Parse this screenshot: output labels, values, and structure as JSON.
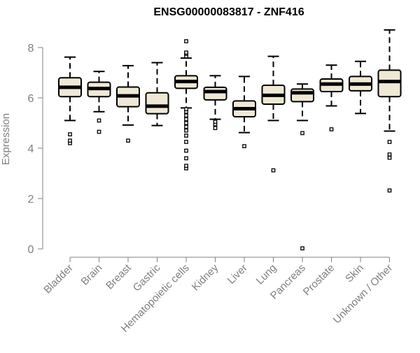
{
  "chart_data": {
    "type": "box",
    "title": "ENSG00000083817 - ZNF416",
    "xlabel": "",
    "ylabel": "Expression",
    "ylim": [
      0,
      8.6
    ],
    "yticks": [
      0,
      2,
      4,
      6,
      8
    ],
    "grid": false,
    "legend": "none",
    "colors": {
      "box_fill": "#EEE8D5",
      "box_stroke": "#000000",
      "median": "#000000",
      "axis": "#808080",
      "tick_label": "#808080",
      "title": "#000000"
    },
    "categories": [
      "Bladder",
      "Brain",
      "Breast",
      "Gastric",
      "Hematopoietic cells",
      "Kidney",
      "Liver",
      "Lung",
      "Pancreas",
      "Prostate",
      "Skin",
      "Unknown / Other"
    ],
    "boxes": [
      {
        "category": "Bladder",
        "whisker_low": 5.1,
        "q1": 6.05,
        "median": 6.42,
        "q3": 6.8,
        "whisker_high": 7.62,
        "outliers": [
          4.2,
          4.3,
          4.55
        ]
      },
      {
        "category": "Brain",
        "whisker_low": 5.45,
        "q1": 6.05,
        "median": 6.37,
        "q3": 6.62,
        "whisker_high": 7.05,
        "outliers": [
          4.65,
          5.1
        ]
      },
      {
        "category": "Breast",
        "whisker_low": 4.92,
        "q1": 5.65,
        "median": 6.08,
        "q3": 6.43,
        "whisker_high": 7.28,
        "outliers": [
          4.3
        ]
      },
      {
        "category": "Gastric",
        "whisker_low": 4.9,
        "q1": 5.37,
        "median": 5.67,
        "q3": 6.2,
        "whisker_high": 7.4,
        "outliers": []
      },
      {
        "category": "Hematopoietic cells",
        "whisker_low": 5.6,
        "q1": 6.38,
        "median": 6.65,
        "q3": 6.88,
        "whisker_high": 7.58,
        "outliers": [
          3.2,
          3.3,
          3.6,
          3.9,
          4.25,
          4.5,
          4.7,
          4.85,
          5.0,
          5.15,
          5.3,
          5.45,
          5.55,
          7.65,
          7.75,
          7.8,
          8.25
        ]
      },
      {
        "category": "Kidney",
        "whisker_low": 5.15,
        "q1": 5.92,
        "median": 6.25,
        "q3": 6.42,
        "whisker_high": 6.88,
        "outliers": [
          4.8,
          4.95,
          5.05
        ]
      },
      {
        "category": "Liver",
        "whisker_low": 4.62,
        "q1": 5.25,
        "median": 5.57,
        "q3": 5.88,
        "whisker_high": 6.85,
        "outliers": [
          4.08
        ]
      },
      {
        "category": "Lung",
        "whisker_low": 5.1,
        "q1": 5.75,
        "median": 6.1,
        "q3": 6.5,
        "whisker_high": 7.65,
        "outliers": [
          3.12
        ]
      },
      {
        "category": "Pancreas",
        "whisker_low": 5.1,
        "q1": 5.85,
        "median": 6.2,
        "q3": 6.35,
        "whisker_high": 6.55,
        "outliers": [
          4.6,
          0.02
        ]
      },
      {
        "category": "Prostate",
        "whisker_low": 5.68,
        "q1": 6.25,
        "median": 6.55,
        "q3": 6.75,
        "whisker_high": 7.3,
        "outliers": [
          4.75
        ]
      },
      {
        "category": "Skin",
        "whisker_low": 5.38,
        "q1": 6.28,
        "median": 6.55,
        "q3": 6.85,
        "whisker_high": 7.45,
        "outliers": []
      },
      {
        "category": "Unknown / Other",
        "whisker_low": 4.68,
        "q1": 6.05,
        "median": 6.65,
        "q3": 7.1,
        "whisker_high": 8.7,
        "outliers": [
          2.32,
          3.62,
          3.75,
          4.25
        ]
      }
    ]
  }
}
